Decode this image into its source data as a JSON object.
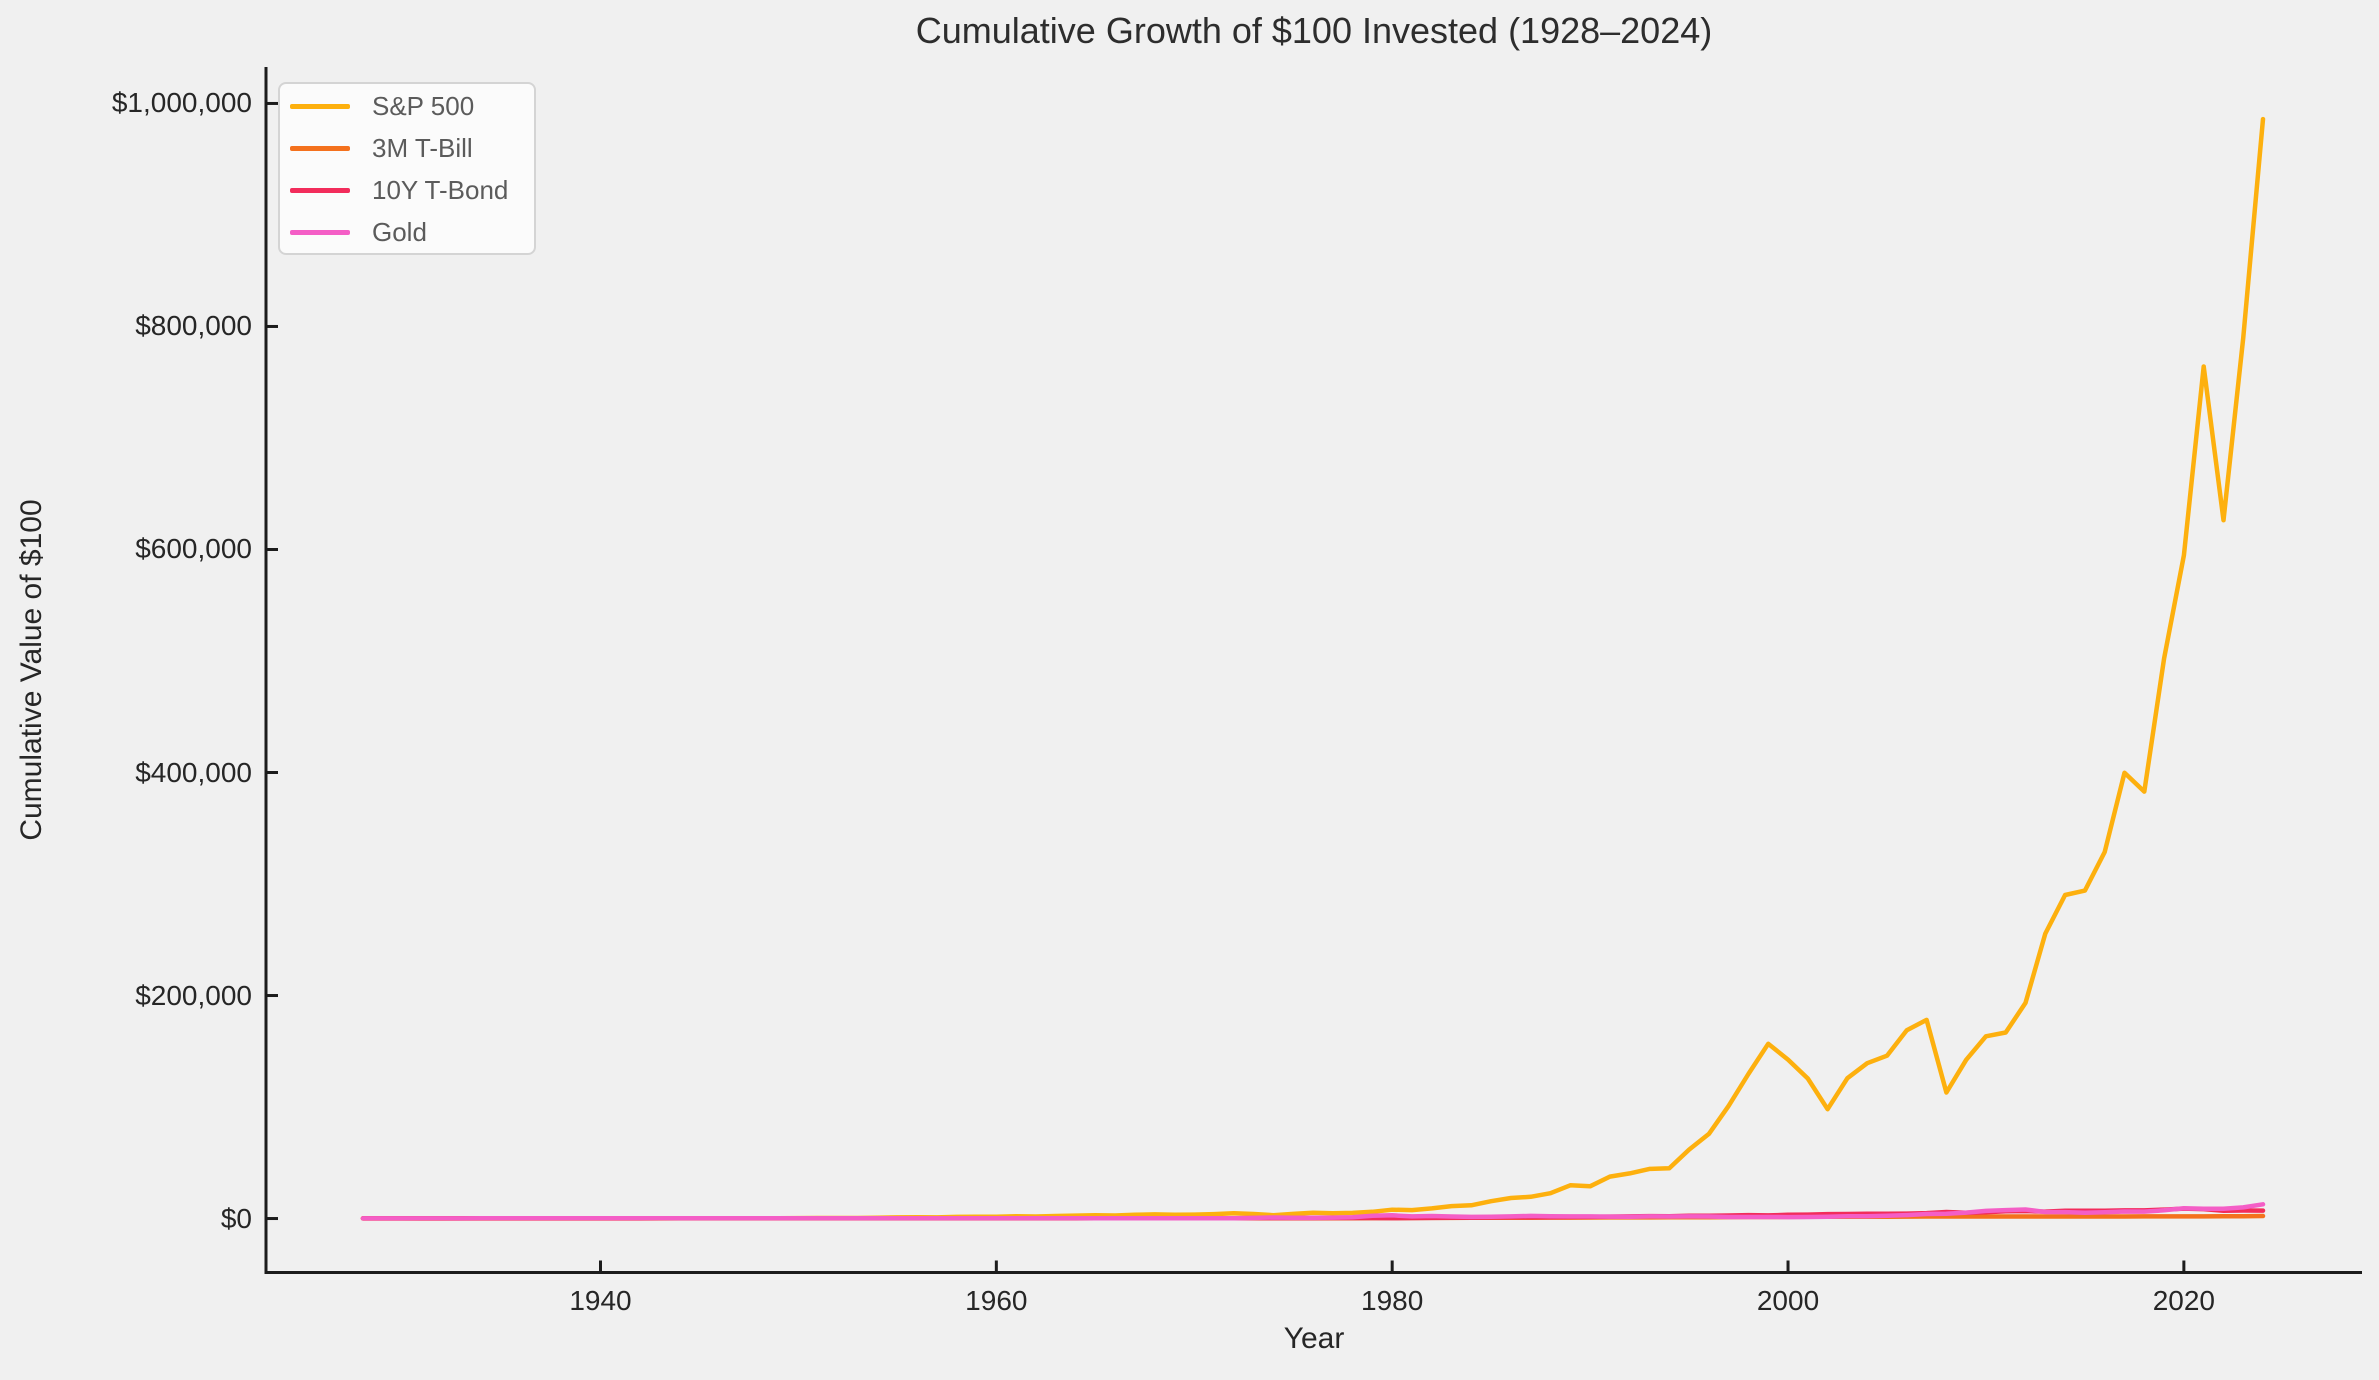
{
  "chart_data": {
    "type": "line",
    "title": "Cumulative Growth of $100 Invested (1928–2024)",
    "xlabel": "Year",
    "ylabel": "Cumulative Value of $100",
    "background_color": "#f0f0f0",
    "spine_color": "#1c1c1c",
    "grid": false,
    "legend_position": "upper-left",
    "xlim": [
      1923.1,
      2029.0
    ],
    "ylim": [
      -48400,
      1032700
    ],
    "xticks": [
      1940,
      1960,
      1980,
      2000,
      2020
    ],
    "xtick_labels": [
      "1940",
      "1960",
      "1980",
      "2000",
      "2020"
    ],
    "yticks": [
      0,
      200000,
      400000,
      600000,
      800000,
      1000000
    ],
    "ytick_labels": [
      "$0",
      "$200,000",
      "$400,000",
      "$600,000",
      "$800,000",
      "$1,000,000"
    ],
    "x": [
      1928,
      1929,
      1930,
      1931,
      1932,
      1933,
      1934,
      1935,
      1936,
      1937,
      1938,
      1939,
      1940,
      1941,
      1942,
      1943,
      1944,
      1945,
      1946,
      1947,
      1948,
      1949,
      1950,
      1951,
      1952,
      1953,
      1954,
      1955,
      1956,
      1957,
      1958,
      1959,
      1960,
      1961,
      1962,
      1963,
      1964,
      1965,
      1966,
      1967,
      1968,
      1969,
      1970,
      1971,
      1972,
      1973,
      1974,
      1975,
      1976,
      1977,
      1978,
      1979,
      1980,
      1981,
      1982,
      1983,
      1984,
      1985,
      1986,
      1987,
      1988,
      1989,
      1990,
      1991,
      1992,
      1993,
      1994,
      1995,
      1996,
      1997,
      1998,
      1999,
      2000,
      2001,
      2002,
      2003,
      2004,
      2005,
      2006,
      2007,
      2008,
      2009,
      2010,
      2011,
      2012,
      2013,
      2014,
      2015,
      2016,
      2017,
      2018,
      2019,
      2020,
      2021,
      2022,
      2023,
      2024
    ],
    "series": [
      {
        "name": "S&P 500",
        "color": "#FDB00E",
        "values": [
          144,
          132,
          99,
          55,
          51,
          76,
          75,
          110,
          145,
          94,
          122,
          120,
          107,
          94,
          112,
          140,
          166,
          226,
          207,
          217,
          230,
          272,
          356,
          440,
          520,
          513,
          783,
          1038,
          1116,
          999,
          1436,
          1609,
          1614,
          2044,
          1864,
          2286,
          2661,
          2991,
          2693,
          3334,
          3694,
          3390,
          3510,
          4010,
          4762,
          4080,
          3024,
          4142,
          5129,
          4771,
          5082,
          6023,
          7934,
          7561,
          9105,
          11139,
          11824,
          15517,
          18386,
          19455,
          22672,
          29809,
          28896,
          37632,
          40452,
          44483,
          45073,
          61838,
          75864,
          100977,
          129592,
          156658,
          142509,
          125622,
          98028,
          125824,
          139337,
          146067,
          168872,
          178127,
          113030,
          142344,
          163441,
          166871,
          193388,
          255553,
          290115,
          294116,
          328736,
          399773,
          382868,
          502366,
          594807,
          764141,
          626287,
          789483,
          985992
        ]
      },
      {
        "name": "3M T-Bill",
        "color": "#F4711D",
        "values": [
          103,
          106,
          108,
          110,
          111,
          111,
          111,
          112,
          112,
          112,
          112,
          112,
          112,
          112,
          113,
          113,
          113,
          113,
          114,
          114,
          115,
          116,
          117,
          119,
          121,
          123,
          124,
          126,
          129,
          133,
          135,
          139,
          143,
          146,
          150,
          155,
          160,
          166,
          174,
          181,
          191,
          203,
          216,
          226,
          235,
          251,
          271,
          287,
          301,
          316,
          338,
          373,
          414,
          475,
          525,
          570,
          625,
          673,
          714,
          753,
          802,
          870,
          938,
          989,
          1023,
          1054,
          1098,
          1159,
          1217,
          1278,
          1339,
          1401,
          1484,
          1537,
          1562,
          1578,
          1599,
          1647,
          1725,
          1801,
          1825,
          1827,
          1829,
          1830,
          1831,
          1832,
          1833,
          1834,
          1839,
          1856,
          1891,
          1932,
          1939,
          1940,
          1971,
          2065,
          2250
        ]
      },
      {
        "name": "10Y T-Bond",
        "color": "#F22C5B",
        "values": [
          101,
          104,
          109,
          106,
          115,
          117,
          126,
          132,
          139,
          141,
          147,
          154,
          162,
          159,
          162,
          166,
          170,
          176,
          178,
          179,
          183,
          191,
          192,
          191,
          194,
          200,
          207,
          204,
          199,
          213,
          209,
          204,
          228,
          233,
          246,
          250,
          259,
          261,
          270,
          266,
          274,
          260,
          303,
          333,
          339,
          351,
          358,
          371,
          431,
          437,
          433,
          437,
          424,
          458,
          605,
          625,
          721,
          907,
          1127,
          1095,
          1188,
          1398,
          1484,
          1711,
          1874,
          2140,
          1968,
          2432,
          2467,
          2713,
          3095,
          2840,
          3313,
          3481,
          4007,
          4023,
          4212,
          4336,
          4422,
          4878,
          5875,
          5225,
          5665,
          6558,
          6747,
          6238,
          6920,
          7010,
          7058,
          7257,
          7257,
          7975,
          8866,
          8474,
          6963,
          7233,
          7114
        ]
      },
      {
        "name": "Gold",
        "color": "#F45EC6",
        "values": [
          100,
          100,
          100,
          100,
          100,
          129,
          169,
          169,
          169,
          169,
          169,
          169,
          169,
          169,
          169,
          169,
          169,
          169,
          169,
          169,
          169,
          169,
          169,
          169,
          169,
          169,
          169,
          169,
          169,
          169,
          169,
          169,
          169,
          169,
          169,
          169,
          169,
          169,
          169,
          169,
          190,
          170,
          181,
          210,
          315,
          542,
          903,
          677,
          650,
          802,
          1094,
          2483,
          2862,
          1932,
          2227,
          1837,
          1490,
          1585,
          1897,
          2357,
          1987,
          1945,
          1898,
          1717,
          1615,
          1897,
          1855,
          1876,
          1787,
          1402,
          1391,
          1409,
          1324,
          1343,
          1675,
          2011,
          2121,
          2486,
          3079,
          4043,
          4265,
          5309,
          6873,
          7566,
          8103,
          5818,
          5731,
          5133,
          5574,
          6304,
          6200,
          7338,
          9170,
          8849,
          8824,
          9984,
          12721
        ]
      }
    ]
  }
}
